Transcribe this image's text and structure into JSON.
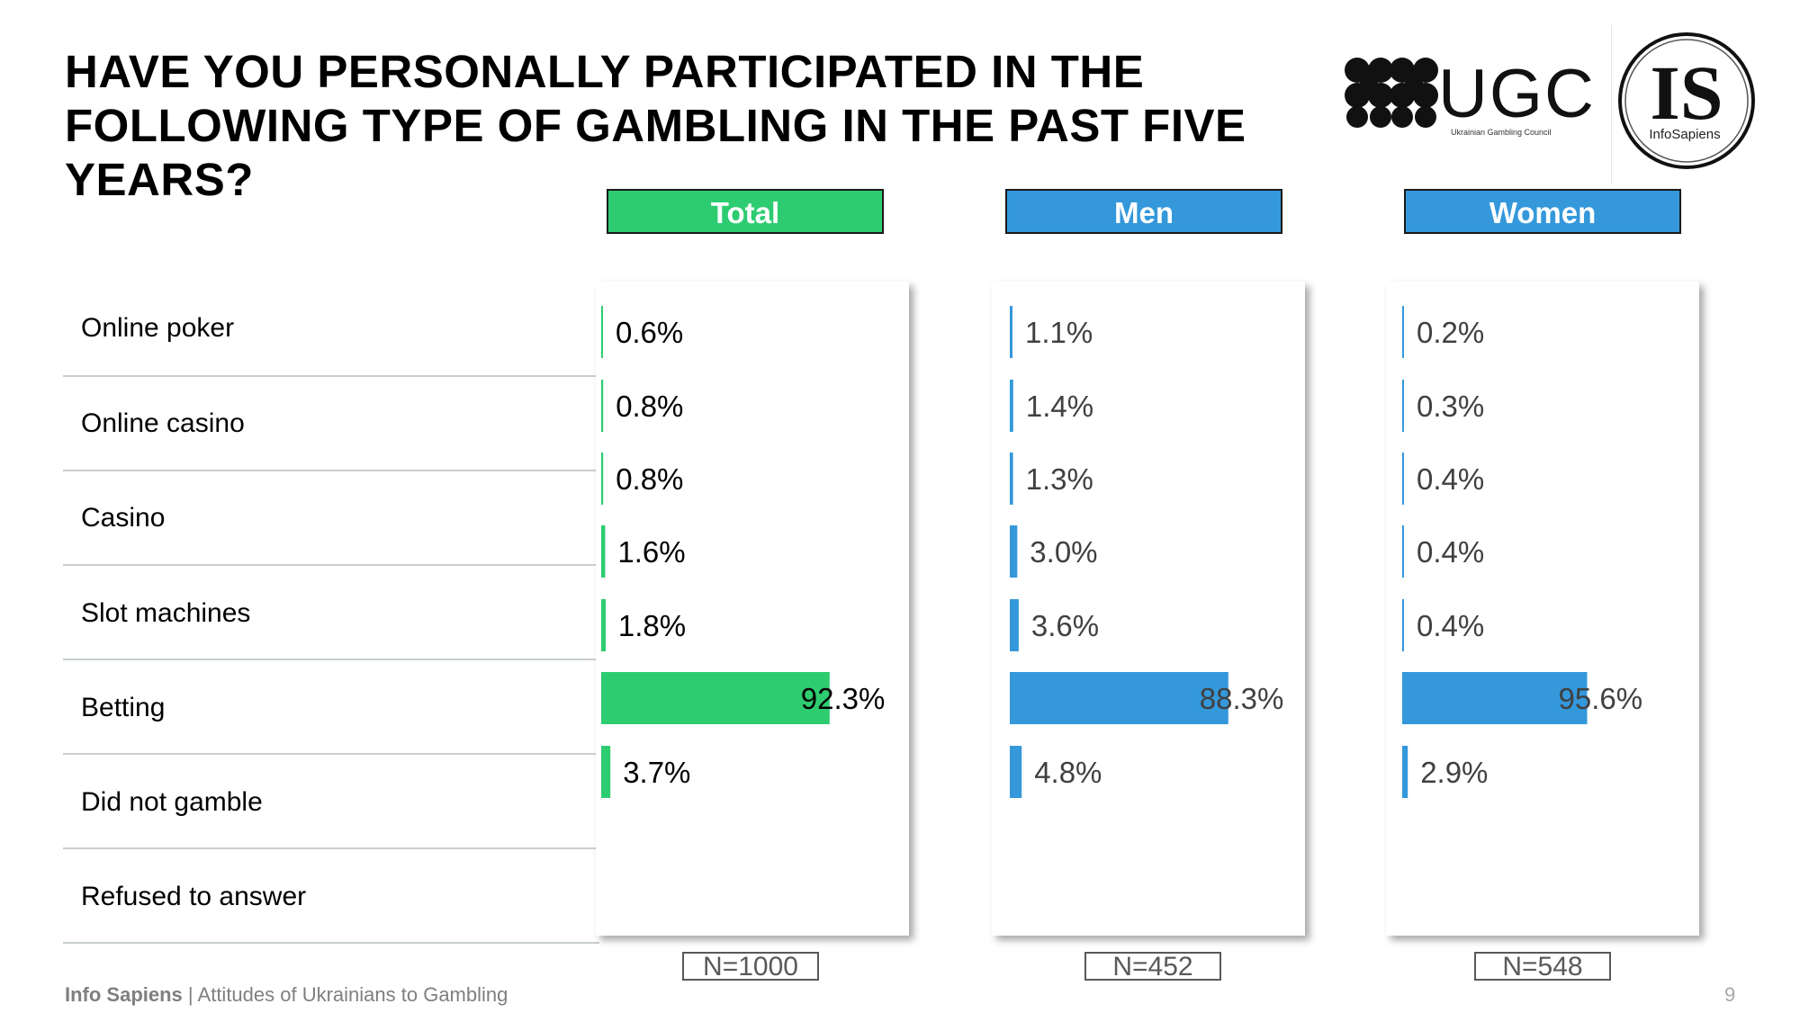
{
  "title": "HAVE YOU PERSONALLY PARTICIPATED IN THE\nFOLLOWING TYPE OF GAMBLING IN THE PAST FIVE\nYEARS?",
  "logos": {
    "ugc_text": "UGC",
    "ugc_subtitle": "Ukrainian Gambling Council",
    "is_text": "IS",
    "is_subtitle": "InfoSapiens"
  },
  "footer": {
    "brand": "Info Sapiens",
    "separator": " | ",
    "text": "Attitudes of Ukrainians to Gambling"
  },
  "page_number": "9",
  "colors": {
    "total": "#2ecc71",
    "men": "#3498db",
    "women": "#3498db",
    "text_values_men_women": "#404040"
  },
  "chart_data": {
    "type": "bar",
    "orientation": "horizontal",
    "categories": [
      "Online poker",
      "Online casino",
      "Casino",
      "Slot machines",
      "Betting",
      "Did not gamble",
      "Refused to answer"
    ],
    "xlim": [
      0,
      100
    ],
    "series": [
      {
        "name": "Total",
        "sample": "N=1000",
        "values": [
          0.6,
          0.8,
          0.8,
          1.6,
          1.8,
          92.3,
          3.7
        ],
        "labels": [
          "0.6%",
          "0.8%",
          "0.8%",
          "1.6%",
          "1.8%",
          "92.3%",
          "3.7%"
        ]
      },
      {
        "name": "Men",
        "sample": "N=452",
        "values": [
          1.1,
          1.4,
          1.3,
          3.0,
          3.6,
          88.3,
          4.8
        ],
        "labels": [
          "1.1%",
          "1.4%",
          "1.3%",
          "3.0%",
          "3.6%",
          "88.3%",
          "4.8%"
        ]
      },
      {
        "name": "Women",
        "sample": "N=548",
        "values": [
          0.2,
          0.3,
          0.4,
          0.4,
          0.4,
          95.6,
          2.9
        ],
        "labels": [
          "0.2%",
          "0.3%",
          "0.4%",
          "0.4%",
          "0.4%",
          "95.6%",
          "2.9%"
        ]
      }
    ]
  }
}
